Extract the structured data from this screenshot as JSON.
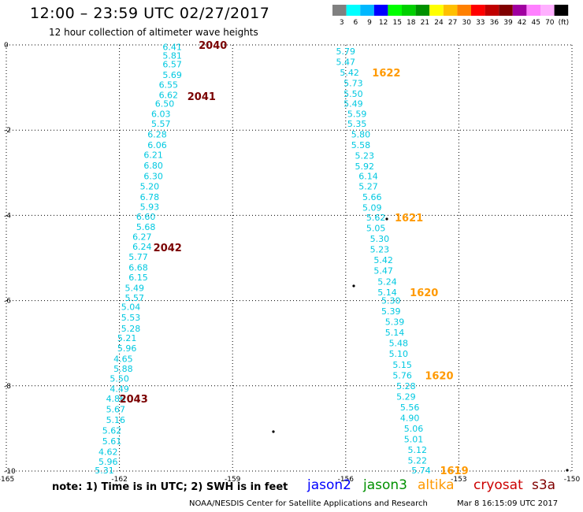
{
  "title": "12:00 – 23:59 UTC 02/27/2017",
  "subtitle": "12 hour collection of altimeter wave heights",
  "note": "note:  1) Time is in UTC;  2) SWH is in feet",
  "credit": "NOAA/NESDIS Center for Satellite Applications and Research",
  "timestamp": "Mar  8 16:15:09 UTC 2017",
  "legend": {
    "colors": [
      "#808080",
      "#00ffff",
      "#00b8ff",
      "#0000ff",
      "#00ff00",
      "#00d000",
      "#009000",
      "#ffff00",
      "#ffc000",
      "#ff8000",
      "#ff0000",
      "#c00000",
      "#800000",
      "#a000a0",
      "#ff80ff",
      "#ffb0ff",
      "#000000"
    ],
    "labels": [
      "3",
      "6",
      "9",
      "12",
      "15",
      "18",
      "21",
      "24",
      "27",
      "30",
      "33",
      "36",
      "39",
      "42",
      "45",
      "70",
      "(ft)"
    ]
  },
  "satellites": [
    {
      "name": "jason2",
      "color": "#0000ff"
    },
    {
      "name": "jason3",
      "color": "#009000"
    },
    {
      "name": "altika",
      "color": "#ff9900"
    },
    {
      "name": "cryosat",
      "color": "#cc0000"
    },
    {
      "name": "s3a",
      "color": "#800000"
    }
  ],
  "chart_data": {
    "type": "map",
    "xlim": [
      -165,
      -150
    ],
    "ylim": [
      -10,
      0
    ],
    "x_ticks": [
      -165,
      -162,
      -159,
      -156,
      -153,
      -150
    ],
    "y_ticks": [
      0,
      -2,
      -4,
      -6,
      -8,
      -10
    ],
    "tracks": [
      {
        "satellite": "altika",
        "color": "#00c8e0",
        "points": [
          {
            "lon": -160.6,
            "lat": -0.05,
            "swh": "6.41"
          },
          {
            "lon": -160.6,
            "lat": -0.25,
            "swh": "5.81"
          },
          {
            "lon": -160.6,
            "lat": -0.45,
            "swh": "6.57"
          },
          {
            "lon": -160.6,
            "lat": -0.7,
            "swh": "5.69"
          },
          {
            "lon": -160.7,
            "lat": -0.93,
            "swh": "6.55"
          },
          {
            "lon": -160.7,
            "lat": -1.17,
            "swh": "6.62"
          },
          {
            "lon": -160.8,
            "lat": -1.38,
            "swh": "6.50"
          },
          {
            "lon": -160.9,
            "lat": -1.62,
            "swh": "6.03"
          },
          {
            "lon": -160.9,
            "lat": -1.85,
            "swh": "5.57"
          },
          {
            "lon": -161.0,
            "lat": -2.1,
            "swh": "6.28"
          },
          {
            "lon": -161.0,
            "lat": -2.35,
            "swh": "6.06"
          },
          {
            "lon": -161.1,
            "lat": -2.58,
            "swh": "6.21"
          },
          {
            "lon": -161.1,
            "lat": -2.83,
            "swh": "6.80"
          },
          {
            "lon": -161.1,
            "lat": -3.08,
            "swh": "6.30"
          },
          {
            "lon": -161.2,
            "lat": -3.32,
            "swh": "5.20"
          },
          {
            "lon": -161.2,
            "lat": -3.57,
            "swh": "6.78"
          },
          {
            "lon": -161.2,
            "lat": -3.8,
            "swh": "5.93"
          },
          {
            "lon": -161.3,
            "lat": -4.03,
            "swh": "6.60"
          },
          {
            "lon": -161.3,
            "lat": -4.27,
            "swh": "5.68"
          },
          {
            "lon": -161.4,
            "lat": -4.5,
            "swh": "6.27"
          },
          {
            "lon": -161.4,
            "lat": -4.73,
            "swh": "6.24"
          },
          {
            "lon": -161.5,
            "lat": -4.97,
            "swh": "5.77"
          },
          {
            "lon": -161.5,
            "lat": -5.22,
            "swh": "6.68"
          },
          {
            "lon": -161.5,
            "lat": -5.45,
            "swh": "6.15"
          },
          {
            "lon": -161.6,
            "lat": -5.7,
            "swh": "5.49"
          },
          {
            "lon": -161.6,
            "lat": -5.93,
            "swh": "5.57"
          },
          {
            "lon": -161.7,
            "lat": -6.15,
            "swh": "5.04"
          },
          {
            "lon": -161.7,
            "lat": -6.4,
            "swh": "5.53"
          },
          {
            "lon": -161.7,
            "lat": -6.65,
            "swh": "5.28"
          },
          {
            "lon": -161.8,
            "lat": -6.88,
            "swh": "5.21"
          },
          {
            "lon": -161.8,
            "lat": -7.12,
            "swh": "5.96"
          },
          {
            "lon": -161.9,
            "lat": -7.37,
            "swh": "4.65"
          },
          {
            "lon": -161.9,
            "lat": -7.6,
            "swh": "5.88"
          },
          {
            "lon": -162.0,
            "lat": -7.83,
            "swh": "5.50"
          },
          {
            "lon": -162.0,
            "lat": -8.07,
            "swh": "4.49"
          },
          {
            "lon": -162.1,
            "lat": -8.3,
            "swh": "4.86"
          },
          {
            "lon": -162.1,
            "lat": -8.55,
            "swh": "5.67"
          },
          {
            "lon": -162.1,
            "lat": -8.8,
            "swh": "5.16"
          },
          {
            "lon": -162.2,
            "lat": -9.05,
            "swh": "5.62"
          },
          {
            "lon": -162.2,
            "lat": -9.3,
            "swh": "5.61"
          },
          {
            "lon": -162.3,
            "lat": -9.55,
            "swh": "4.62"
          },
          {
            "lon": -162.3,
            "lat": -9.78,
            "swh": "5.96"
          },
          {
            "lon": -162.4,
            "lat": -9.98,
            "swh": "5.31"
          }
        ],
        "times": [
          {
            "lon": -159.9,
            "lat": 0.0,
            "label": "2040"
          },
          {
            "lon": -160.2,
            "lat": -1.2,
            "label": "2041"
          },
          {
            "lon": -161.1,
            "lat": -4.75,
            "label": "2042"
          },
          {
            "lon": -162.0,
            "lat": -8.3,
            "label": "2043"
          }
        ]
      },
      {
        "satellite": "altika",
        "color": "#00c8e0",
        "points": [
          {
            "lon": -156.0,
            "lat": -0.15,
            "swh": "5.79"
          },
          {
            "lon": -156.0,
            "lat": -0.4,
            "swh": "5.47"
          },
          {
            "lon": -155.9,
            "lat": -0.65,
            "swh": "5.42"
          },
          {
            "lon": -155.8,
            "lat": -0.9,
            "swh": "5.73"
          },
          {
            "lon": -155.8,
            "lat": -1.15,
            "swh": "5.50"
          },
          {
            "lon": -155.8,
            "lat": -1.38,
            "swh": "5.49"
          },
          {
            "lon": -155.7,
            "lat": -1.62,
            "swh": "5.59"
          },
          {
            "lon": -155.7,
            "lat": -1.85,
            "swh": "5.35"
          },
          {
            "lon": -155.6,
            "lat": -2.1,
            "swh": "5.80"
          },
          {
            "lon": -155.6,
            "lat": -2.35,
            "swh": "5.58"
          },
          {
            "lon": -155.5,
            "lat": -2.6,
            "swh": "5.23"
          },
          {
            "lon": -155.5,
            "lat": -2.85,
            "swh": "5.92"
          },
          {
            "lon": -155.4,
            "lat": -3.08,
            "swh": "6.14"
          },
          {
            "lon": -155.4,
            "lat": -3.32,
            "swh": "5.27"
          },
          {
            "lon": -155.3,
            "lat": -3.57,
            "swh": "5.66"
          },
          {
            "lon": -155.3,
            "lat": -3.82,
            "swh": "5.09"
          },
          {
            "lon": -155.2,
            "lat": -4.05,
            "swh": "5.62"
          },
          {
            "lon": -155.2,
            "lat": -4.3,
            "swh": "5.05"
          },
          {
            "lon": -155.1,
            "lat": -4.55,
            "swh": "5.30"
          },
          {
            "lon": -155.1,
            "lat": -4.8,
            "swh": "5.23"
          },
          {
            "lon": -155.0,
            "lat": -5.05,
            "swh": "5.42"
          },
          {
            "lon": -155.0,
            "lat": -5.3,
            "swh": "5.47"
          },
          {
            "lon": -154.9,
            "lat": -5.55,
            "swh": "5.24"
          },
          {
            "lon": -154.9,
            "lat": -5.8,
            "swh": "5.14"
          },
          {
            "lon": -154.8,
            "lat": -6.0,
            "swh": "5.30"
          },
          {
            "lon": -154.8,
            "lat": -6.25,
            "swh": "5.39"
          },
          {
            "lon": -154.7,
            "lat": -6.5,
            "swh": "5.39"
          },
          {
            "lon": -154.7,
            "lat": -6.75,
            "swh": "5.14"
          },
          {
            "lon": -154.6,
            "lat": -7.0,
            "swh": "5.48"
          },
          {
            "lon": -154.6,
            "lat": -7.25,
            "swh": "5.10"
          },
          {
            "lon": -154.5,
            "lat": -7.5,
            "swh": "5.15"
          },
          {
            "lon": -154.5,
            "lat": -7.75,
            "swh": "5.76"
          },
          {
            "lon": -154.4,
            "lat": -8.0,
            "swh": "5.28"
          },
          {
            "lon": -154.4,
            "lat": -8.25,
            "swh": "5.29"
          },
          {
            "lon": -154.3,
            "lat": -8.5,
            "swh": "5.56"
          },
          {
            "lon": -154.3,
            "lat": -8.75,
            "swh": "4.90"
          },
          {
            "lon": -154.2,
            "lat": -9.0,
            "swh": "5.06"
          },
          {
            "lon": -154.2,
            "lat": -9.25,
            "swh": "5.01"
          },
          {
            "lon": -154.1,
            "lat": -9.5,
            "swh": "5.12"
          },
          {
            "lon": -154.1,
            "lat": -9.75,
            "swh": "5.22"
          },
          {
            "lon": -154.0,
            "lat": -9.98,
            "swh": "5.74"
          }
        ],
        "times": [
          {
            "lon": -155.3,
            "lat": -0.65,
            "label": "1622"
          },
          {
            "lon": -154.7,
            "lat": -4.05,
            "label": "1621"
          },
          {
            "lon": -154.3,
            "lat": -5.8,
            "label": "1620"
          },
          {
            "lon": -153.9,
            "lat": -7.75,
            "label": "1620"
          },
          {
            "lon": -153.5,
            "lat": -9.98,
            "label": "1619"
          }
        ]
      }
    ]
  }
}
